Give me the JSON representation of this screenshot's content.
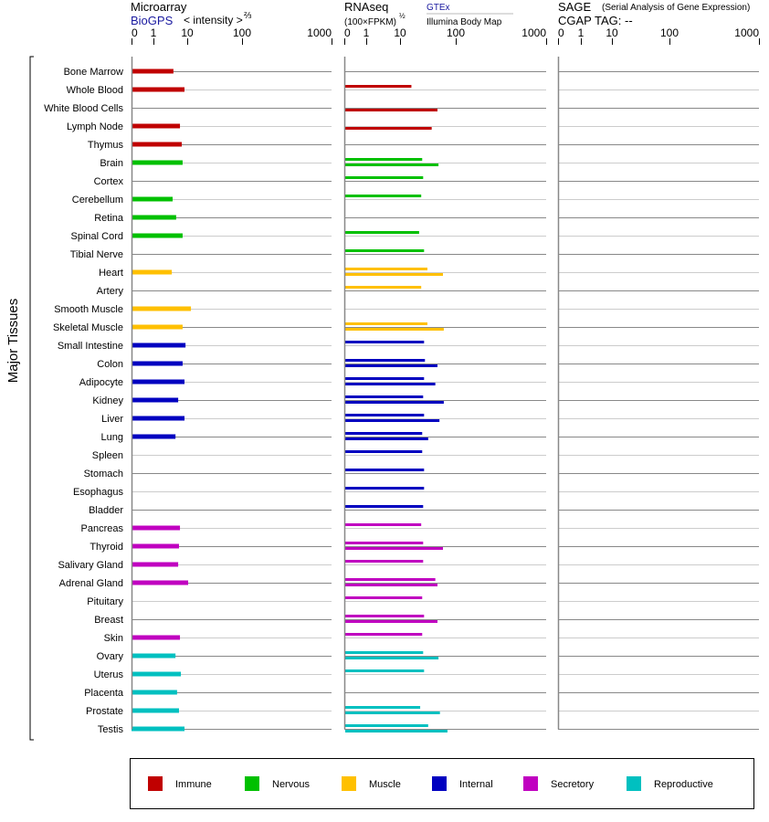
{
  "chart_data": {
    "type": "bar",
    "ylabel": "Major Tissues",
    "panels": {
      "microarray": {
        "title": "Microarray",
        "source": "BioGPS",
        "scale_label": "< intensity >",
        "scale_exp": "⅔"
      },
      "rnaseq": {
        "title": "RNAseq",
        "scale_label": "(100×FPKM)",
        "scale_exp": "½",
        "source_top": "GTEx",
        "source_bottom": "Illumina Body Map"
      },
      "sage": {
        "title": "SAGE",
        "subtitle": "(Serial Analysis of Gene Expression)",
        "tag_label": "CGAP TAG:",
        "tag_value": "--"
      }
    },
    "ticks": [
      "0",
      "1",
      "10",
      "100",
      "1000"
    ],
    "tick_values": [
      0,
      1,
      10,
      100,
      1000
    ],
    "xlim": [
      0,
      1000
    ],
    "groups": [
      {
        "name": "Immune",
        "color": "#c00000"
      },
      {
        "name": "Nervous",
        "color": "#00c000"
      },
      {
        "name": "Muscle",
        "color": "#ffc000"
      },
      {
        "name": "Internal",
        "color": "#0000c0"
      },
      {
        "name": "Secretory",
        "color": "#c000c0"
      },
      {
        "name": "Reproductive",
        "color": "#00c0c0"
      }
    ],
    "rows": [
      {
        "tissue": "Bone Marrow",
        "group": 0,
        "microarray": 3.9,
        "gtex": null,
        "illumina": null
      },
      {
        "tissue": "Whole Blood",
        "group": 0,
        "microarray": 8.3,
        "gtex": 16,
        "illumina": null
      },
      {
        "tissue": "White Blood Cells",
        "group": 0,
        "microarray": null,
        "gtex": null,
        "illumina": 47
      },
      {
        "tissue": "Lymph Node",
        "group": 0,
        "microarray": 6.1,
        "gtex": null,
        "illumina": 37
      },
      {
        "tissue": "Thymus",
        "group": 0,
        "microarray": 6.9,
        "gtex": null,
        "illumina": null
      },
      {
        "tissue": "Brain",
        "group": 1,
        "microarray": 7.3,
        "gtex": 25,
        "illumina": 49
      },
      {
        "tissue": "Cortex",
        "group": 1,
        "microarray": null,
        "gtex": 26,
        "illumina": null
      },
      {
        "tissue": "Cerebellum",
        "group": 1,
        "microarray": 3.7,
        "gtex": 24,
        "illumina": null
      },
      {
        "tissue": "Retina",
        "group": 1,
        "microarray": 4.7,
        "gtex": null,
        "illumina": null
      },
      {
        "tissue": "Spinal Cord",
        "group": 1,
        "microarray": 7.3,
        "gtex": 22,
        "illumina": null
      },
      {
        "tissue": "Tibial Nerve",
        "group": 1,
        "microarray": null,
        "gtex": 27,
        "illumina": null
      },
      {
        "tissue": "Heart",
        "group": 2,
        "microarray": 3.5,
        "gtex": 31,
        "illumina": 59
      },
      {
        "tissue": "Artery",
        "group": 2,
        "microarray": null,
        "gtex": 24,
        "illumina": null
      },
      {
        "tissue": "Smooth Muscle",
        "group": 2,
        "microarray": 11.7,
        "gtex": null,
        "illumina": null
      },
      {
        "tissue": "Skeletal Muscle",
        "group": 2,
        "microarray": 7.3,
        "gtex": 31,
        "illumina": 61
      },
      {
        "tissue": "Small Intestine",
        "group": 3,
        "microarray": 8.9,
        "gtex": 27,
        "illumina": null
      },
      {
        "tissue": "Colon",
        "group": 3,
        "microarray": 7.3,
        "gtex": 28,
        "illumina": 47
      },
      {
        "tissue": "Adipocyte",
        "group": 3,
        "microarray": 8.3,
        "gtex": 27,
        "illumina": 43
      },
      {
        "tissue": "Kidney",
        "group": 3,
        "microarray": 5.4,
        "gtex": 26,
        "illumina": 61
      },
      {
        "tissue": "Liver",
        "group": 3,
        "microarray": 8.3,
        "gtex": 27,
        "illumina": 51
      },
      {
        "tissue": "Lung",
        "group": 3,
        "microarray": 4.5,
        "gtex": 25,
        "illumina": 32
      },
      {
        "tissue": "Spleen",
        "group": 3,
        "microarray": null,
        "gtex": 25,
        "illumina": null
      },
      {
        "tissue": "Stomach",
        "group": 3,
        "microarray": null,
        "gtex": 27,
        "illumina": null
      },
      {
        "tissue": "Esophagus",
        "group": 3,
        "microarray": null,
        "gtex": 27,
        "illumina": null
      },
      {
        "tissue": "Bladder",
        "group": 3,
        "microarray": null,
        "gtex": 26,
        "illumina": null
      },
      {
        "tissue": "Pancreas",
        "group": 4,
        "microarray": 6.1,
        "gtex": 24,
        "illumina": null
      },
      {
        "tissue": "Thyroid",
        "group": 4,
        "microarray": 5.7,
        "gtex": 26,
        "illumina": 59
      },
      {
        "tissue": "Salivary Gland",
        "group": 4,
        "microarray": 5.4,
        "gtex": 26,
        "illumina": null
      },
      {
        "tissue": "Adrenal Gland",
        "group": 4,
        "microarray": 10.4,
        "gtex": 43,
        "illumina": 47
      },
      {
        "tissue": "Pituitary",
        "group": 4,
        "microarray": null,
        "gtex": 25,
        "illumina": null
      },
      {
        "tissue": "Breast",
        "group": 4,
        "microarray": null,
        "gtex": 27,
        "illumina": 47
      },
      {
        "tissue": "Skin",
        "group": 4,
        "microarray": 6.1,
        "gtex": 25,
        "illumina": null
      },
      {
        "tissue": "Ovary",
        "group": 5,
        "microarray": 4.5,
        "gtex": 26,
        "illumina": 49
      },
      {
        "tissue": "Uterus",
        "group": 5,
        "microarray": 6.5,
        "gtex": 27,
        "illumina": null
      },
      {
        "tissue": "Placenta",
        "group": 5,
        "microarray": 5.0,
        "gtex": null,
        "illumina": null
      },
      {
        "tissue": "Prostate",
        "group": 5,
        "microarray": 5.7,
        "gtex": 23,
        "illumina": 52
      },
      {
        "tissue": "Testis",
        "group": 5,
        "microarray": 8.3,
        "gtex": 32,
        "illumina": 71
      }
    ],
    "grid": true,
    "legend": "bottom"
  }
}
